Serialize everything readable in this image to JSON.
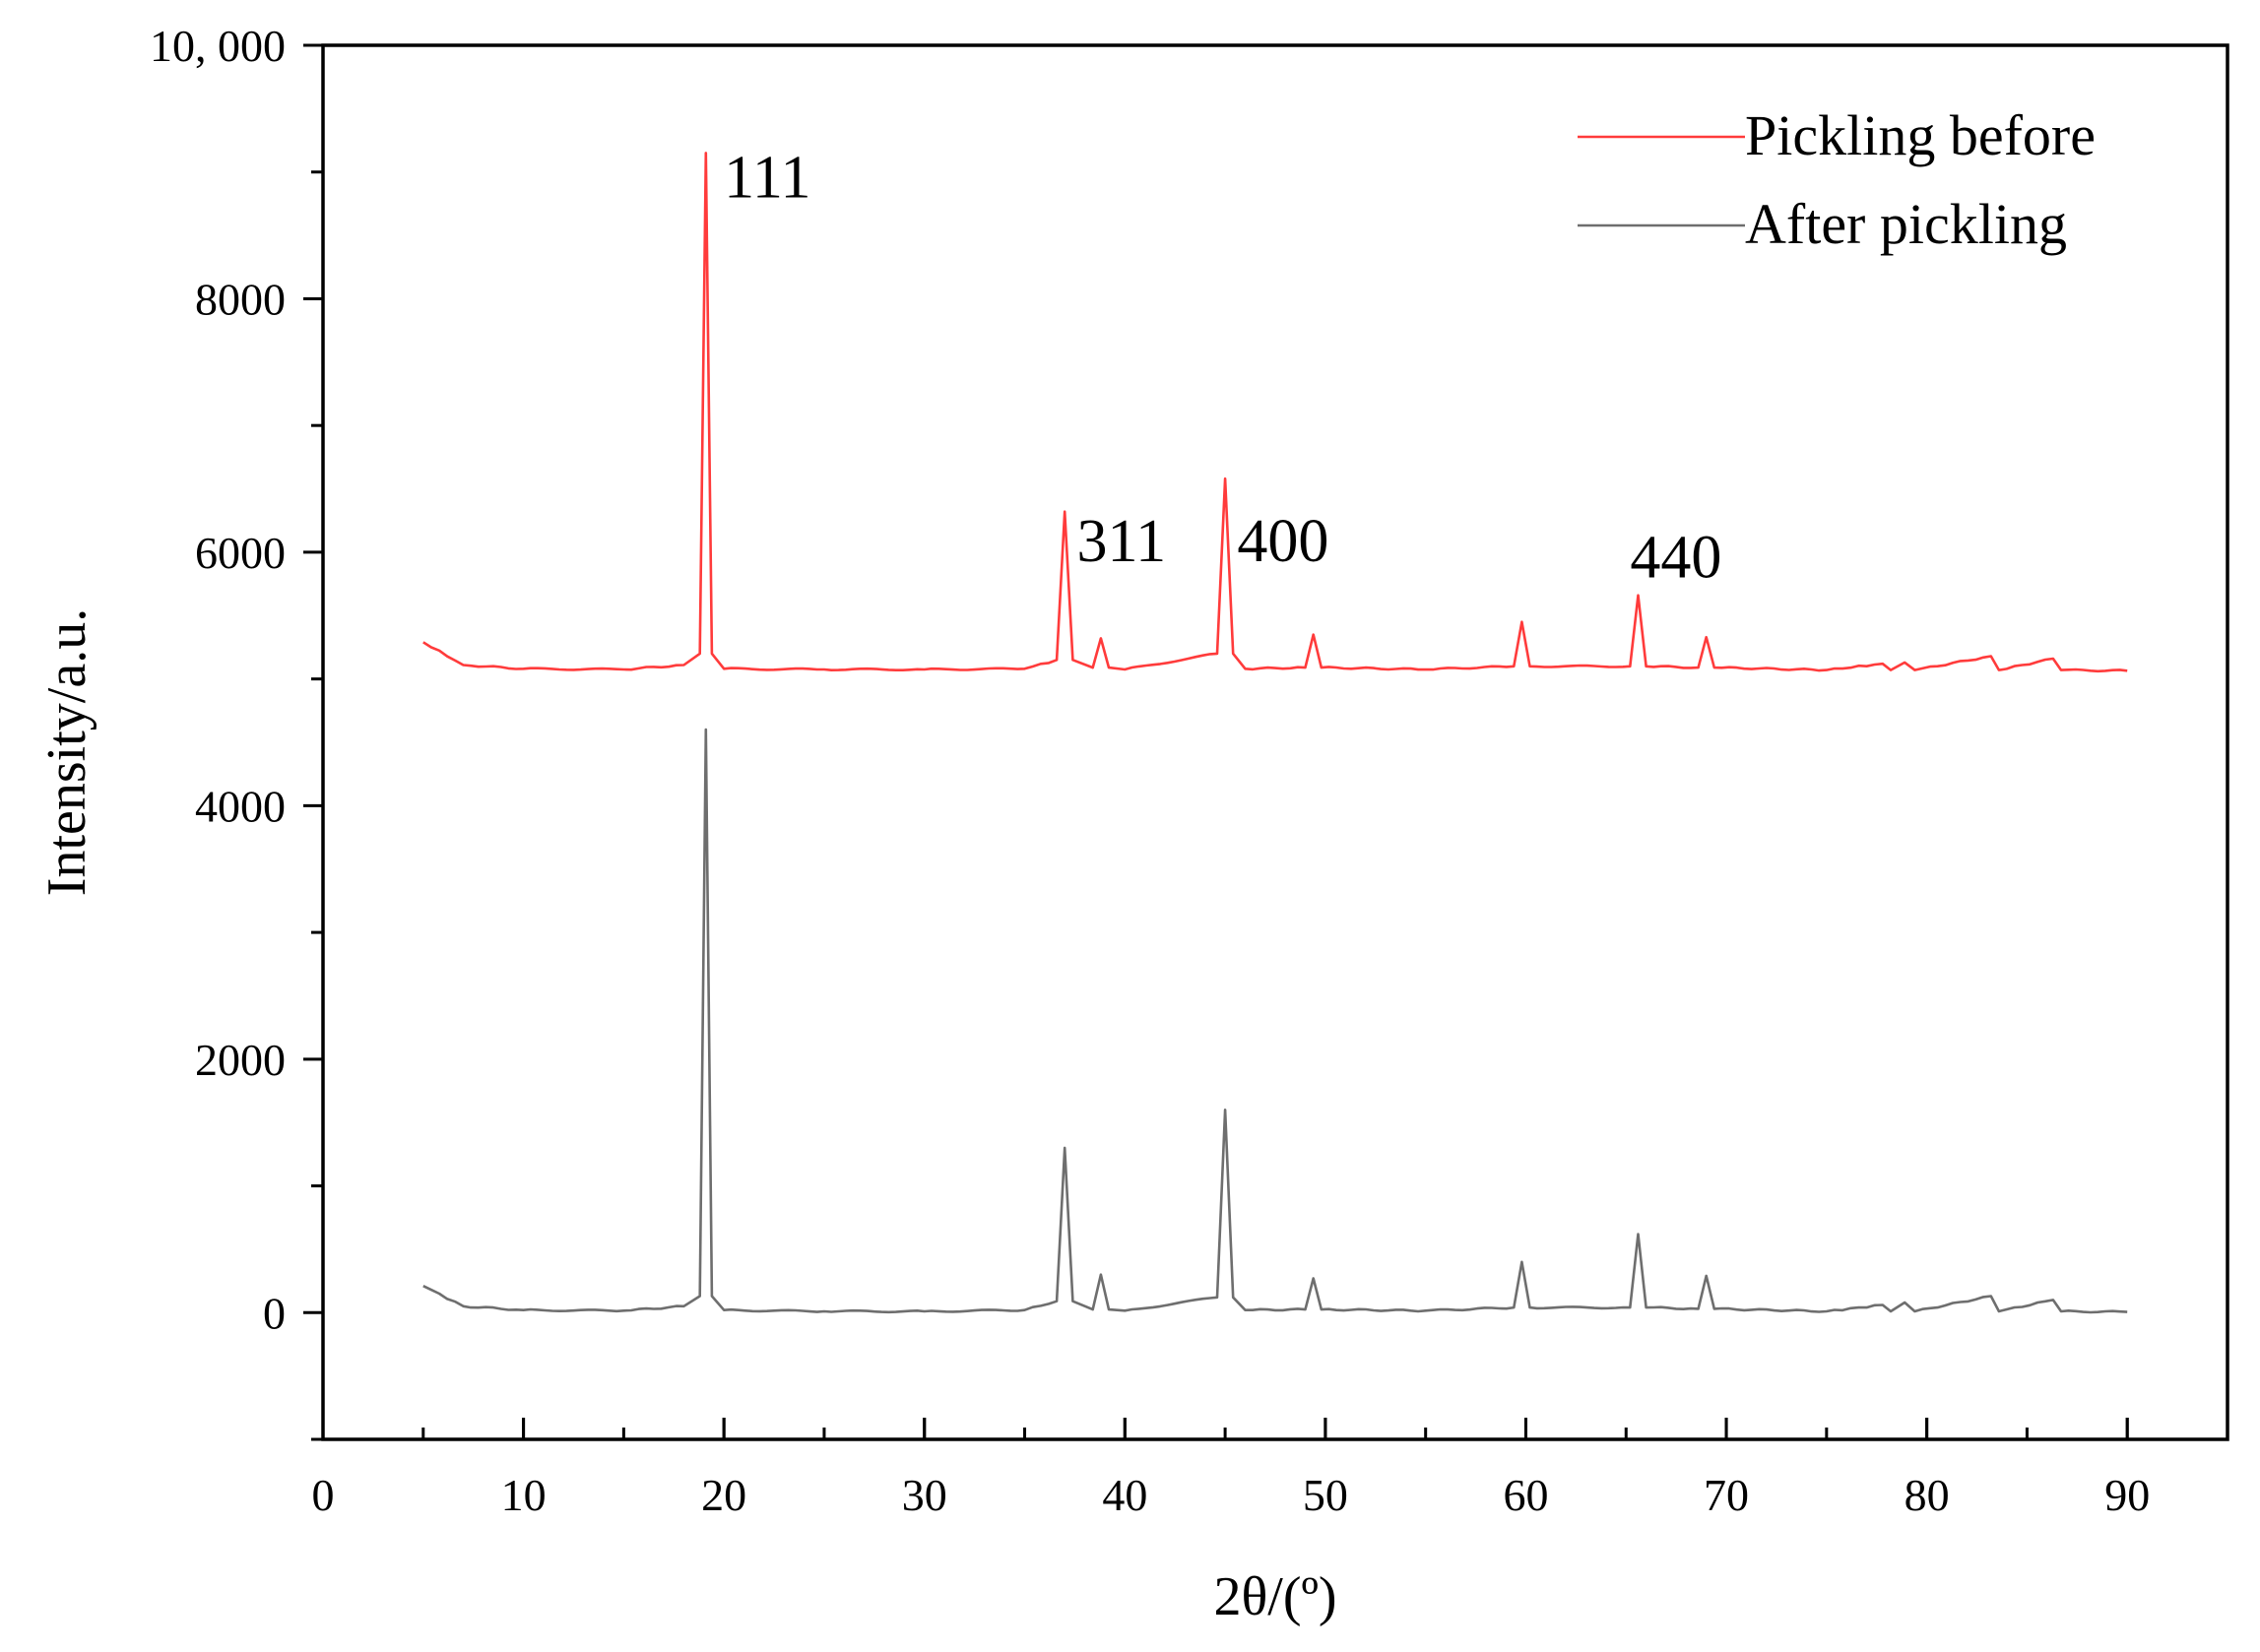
{
  "chart_data": {
    "type": "line",
    "title": "",
    "xlabel": "2θ/(º)",
    "ylabel": "Intensity/a.u.",
    "xlim": [
      0,
      95
    ],
    "ylim": [
      -1000,
      10000
    ],
    "x_ticks": [
      0,
      10,
      20,
      30,
      40,
      50,
      60,
      70,
      80,
      90
    ],
    "x_tick_labels": [
      "0",
      "10",
      "20",
      "30",
      "40",
      "50",
      "60",
      "70",
      "80",
      "90"
    ],
    "y_ticks": [
      0,
      2000,
      4000,
      6000,
      8000,
      10000
    ],
    "y_tick_labels": [
      "0",
      "2000",
      "4000",
      "6000",
      "8000",
      "10, 000"
    ],
    "grid": false,
    "legend_position": "top-right",
    "series": [
      {
        "name": "Pickling before",
        "color": "#ff3b3b",
        "baseline": 5070,
        "x": [
          5,
          7,
          10,
          15,
          18,
          18.8,
          19.1,
          19.4,
          20,
          25,
          30,
          35,
          36.6,
          37.0,
          37.4,
          38.4,
          38.8,
          39.2,
          40,
          44.6,
          45.0,
          45.4,
          46,
          49.0,
          49.4,
          49.8,
          55,
          59.4,
          59.8,
          60.2,
          65.2,
          65.6,
          66.0,
          68.6,
          69.0,
          69.4,
          75,
          77.8,
          78.2,
          78.9,
          79.4,
          83.2,
          83.6,
          86.3,
          86.7,
          90
        ],
        "y": [
          5290,
          5110,
          5080,
          5075,
          5110,
          5200,
          9150,
          5200,
          5080,
          5075,
          5075,
          5080,
          5150,
          6320,
          5150,
          5090,
          5320,
          5090,
          5075,
          5200,
          6580,
          5200,
          5080,
          5090,
          5350,
          5090,
          5075,
          5100,
          5450,
          5100,
          5100,
          5660,
          5100,
          5090,
          5330,
          5090,
          5070,
          5120,
          5070,
          5130,
          5070,
          5180,
          5070,
          5160,
          5070,
          5065
        ]
      },
      {
        "name": "After pickling",
        "color": "#6e6e6e",
        "baseline": 0,
        "x": [
          5,
          7,
          10,
          15,
          18,
          18.8,
          19.1,
          19.4,
          20,
          25,
          30,
          35,
          36.6,
          37.0,
          37.4,
          38.4,
          38.8,
          39.2,
          40,
          44.6,
          45.0,
          45.4,
          46,
          49.0,
          49.4,
          49.8,
          55,
          59.4,
          59.8,
          60.2,
          65.2,
          65.6,
          66.0,
          68.6,
          69.0,
          69.4,
          75,
          77.8,
          78.2,
          78.9,
          79.4,
          83.2,
          83.6,
          86.3,
          86.7,
          90
        ],
        "y": [
          210,
          50,
          20,
          15,
          50,
          130,
          4600,
          130,
          20,
          10,
          10,
          20,
          90,
          1300,
          90,
          25,
          300,
          25,
          15,
          120,
          1600,
          120,
          20,
          25,
          270,
          25,
          15,
          40,
          400,
          40,
          40,
          620,
          40,
          30,
          290,
          30,
          10,
          60,
          10,
          80,
          10,
          130,
          10,
          100,
          10,
          5
        ]
      }
    ],
    "annotations": [
      {
        "text": "111",
        "x": 20.0,
        "y": 8800
      },
      {
        "text": "311",
        "x": 37.6,
        "y": 5930
      },
      {
        "text": "400",
        "x": 45.6,
        "y": 5930
      },
      {
        "text": "440",
        "x": 65.2,
        "y": 5800
      }
    ]
  }
}
